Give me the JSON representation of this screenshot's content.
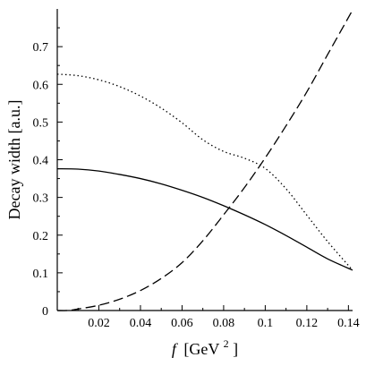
{
  "chart_data": {
    "type": "line",
    "title": "",
    "xlabel_var": "f",
    "xlabel_unit": "[GeV",
    "xlabel_sup": "2",
    "xlabel_close": "]",
    "ylabel": "Decay width [a.u.]",
    "xlim": [
      0,
      0.142
    ],
    "ylim": [
      0,
      0.8
    ],
    "x_ticks": [
      0.02,
      0.04,
      0.06,
      0.08,
      0.1,
      0.12,
      0.14
    ],
    "x_tick_labels": [
      "0.02",
      "0.04",
      "0.06",
      "0.08",
      "0.1",
      "0.12",
      "0.14"
    ],
    "y_ticks": [
      0,
      0.1,
      0.2,
      0.3,
      0.4,
      0.5,
      0.6,
      0.7
    ],
    "y_tick_labels": [
      "0",
      "0.1",
      "0.2",
      "0.3",
      "0.4",
      "0.5",
      "0.6",
      "0.7"
    ],
    "grid": false,
    "series": [
      {
        "style": "solid",
        "x": [
          0.0,
          0.01,
          0.02,
          0.03,
          0.04,
          0.05,
          0.06,
          0.07,
          0.08,
          0.09,
          0.1,
          0.11,
          0.12,
          0.13,
          0.142
        ],
        "y": [
          0.376,
          0.375,
          0.37,
          0.361,
          0.35,
          0.336,
          0.319,
          0.3,
          0.278,
          0.254,
          0.228,
          0.199,
          0.168,
          0.137,
          0.107
        ]
      },
      {
        "style": "dotted",
        "x": [
          0.0,
          0.01,
          0.02,
          0.03,
          0.04,
          0.05,
          0.06,
          0.07,
          0.08,
          0.09,
          0.1,
          0.11,
          0.12,
          0.13,
          0.142
        ],
        "y": [
          0.627,
          0.623,
          0.612,
          0.594,
          0.569,
          0.537,
          0.498,
          0.453,
          0.422,
          0.404,
          0.377,
          0.323,
          0.253,
          0.183,
          0.107
        ]
      },
      {
        "style": "dashed",
        "x": [
          0.0,
          0.005,
          0.01,
          0.02,
          0.03,
          0.04,
          0.05,
          0.06,
          0.07,
          0.08,
          0.09,
          0.1,
          0.11,
          0.12,
          0.13,
          0.142
        ],
        "y": [
          0.0,
          0.0,
          0.004,
          0.014,
          0.03,
          0.053,
          0.085,
          0.127,
          0.185,
          0.254,
          0.326,
          0.405,
          0.49,
          0.58,
          0.679,
          0.797
        ]
      }
    ]
  }
}
